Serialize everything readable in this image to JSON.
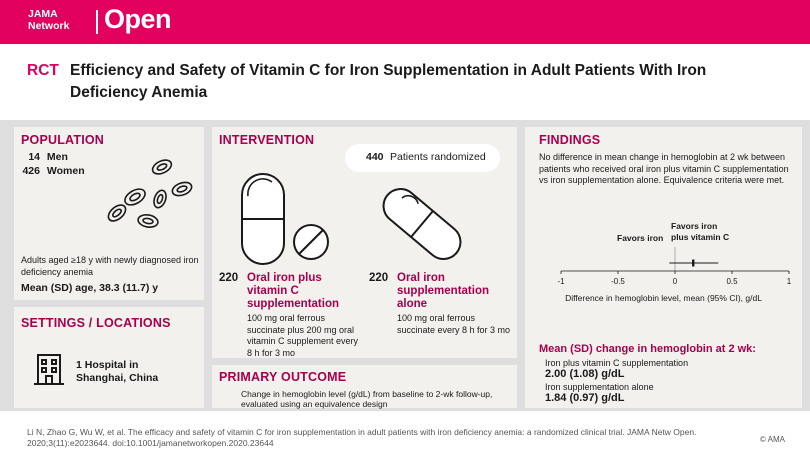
{
  "brand": {
    "line1": "JAMA",
    "line2": "Network",
    "open": "Open"
  },
  "header": {
    "tag": "RCT",
    "title": "Efficiency and Safety of Vitamin C for Iron Supplementation in Adult Patients With Iron Deficiency Anemia"
  },
  "population": {
    "heading": "POPULATION",
    "men_count": "14",
    "men_label": "Men",
    "women_count": "426",
    "women_label": "Women",
    "description": "Adults aged ≥18 y with newly diagnosed iron deficiency anemia",
    "age": "Mean (SD) age, 38.3 (11.7) y",
    "icon": "red-blood-cells-icon"
  },
  "settings": {
    "heading": "SETTINGS / LOCATIONS",
    "text_line1": "1 Hospital in",
    "text_line2": "Shanghai, China",
    "icon": "hospital-building-icon"
  },
  "intervention": {
    "heading": "INTERVENTION",
    "randomized_count": "440",
    "randomized_label": "Patients randomized",
    "arm1": {
      "count": "220",
      "name_line1": "Oral iron plus",
      "name_line2": "vitamin C",
      "name_line3": "supplementation",
      "detail": "100 mg oral ferrous succinate plus 200 mg oral vitamin C supplement every 8 h for 3 mo",
      "icon": "capsule-and-tablet-icon"
    },
    "arm2": {
      "count": "220",
      "name_line1": "Oral iron",
      "name_line2": "supplementation",
      "name_line3": "alone",
      "detail": "100 mg oral ferrous succinate every 8 h for 3 mo",
      "icon": "capsule-icon"
    }
  },
  "outcome": {
    "heading": "PRIMARY OUTCOME",
    "text": "Change in hemoglobin level (g/dL) from baseline to 2-wk follow-up, evaluated using an equivalence design"
  },
  "findings": {
    "heading": "FINDINGS",
    "text": "No difference in mean change in hemoglobin at 2 wk between patients who received oral iron plus vitamin C supplementation vs iron supplementation alone. Equivalence criteria were met.",
    "favors_left": "Favors iron",
    "favors_right_line1": "Favors iron",
    "favors_right_line2": "plus vitamin C",
    "axis_label": "Difference in hemoglobin level, mean (95% CI), g/dL",
    "mean_heading": "Mean (SD) change in hemoglobin at 2 wk:",
    "group1_label": "Iron plus vitamin C supplementation",
    "group1_value": "2.00 (1.08) g/dL",
    "group2_label": "Iron supplementation alone",
    "group2_value": "1.84 (0.97) g/dL"
  },
  "chart_data": {
    "type": "scatter",
    "title": "",
    "xlabel": "Difference in hemoglobin level, mean (95% CI), g/dL",
    "ylabel": "",
    "xlim": [
      -1,
      1
    ],
    "x_ticks": [
      -1,
      -0.5,
      0,
      0.5,
      1
    ],
    "x_tick_labels": [
      "-1",
      "-0.5",
      "0",
      "0.5",
      "1"
    ],
    "series": [
      {
        "x": [
          0.16
        ],
        "ci_low": [
          -0.05
        ],
        "ci_high": [
          0.38
        ]
      }
    ]
  },
  "footer": {
    "citation": "Li N, Zhao G, Wu W, et al. The efficacy and safety of vitamin C for iron supplementation in adult patients with iron deficiency anemia: a randomized clinical trial. JAMA Netw Open. 2020;3(11):e2023644. doi:10.1001/jamanetworkopen.2020.23644",
    "copyright": "© AMA"
  },
  "colors": {
    "brand": "#e2005e",
    "heading": "#a8004c",
    "panel": "#f2f1ed",
    "divider": "#dedede"
  }
}
